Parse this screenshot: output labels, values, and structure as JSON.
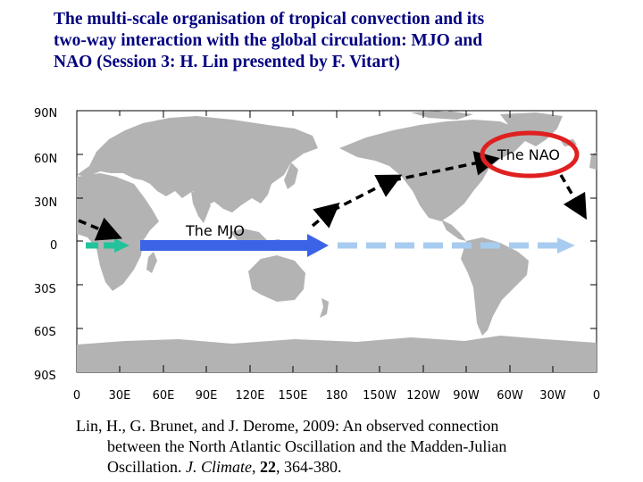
{
  "title": {
    "line1": "The multi-scale organisation of tropical convection and its",
    "line2": "two-way interaction with the global circulation: MJO and",
    "line3": "NAO (Session 3: H. Lin presented by F. Vitart)"
  },
  "map": {
    "lat_labels": [
      "90N",
      "60N",
      "30N",
      "0",
      "30S",
      "60S",
      "90S"
    ],
    "lon_labels": [
      "0",
      "30E",
      "60E",
      "90E",
      "120E",
      "150E",
      "180",
      "150W",
      "120W",
      "90W",
      "60W",
      "30W",
      "0"
    ],
    "labels": {
      "mjo": "The MJO",
      "nao": "The NAO"
    },
    "colors": {
      "ocean": "#ffffff",
      "land": "#b3b3b3",
      "mjo_arrow": "#3b63e6",
      "dashed_blue": "#a8ccf0",
      "teal_arrow": "#22c39a",
      "nao_circle": "#e02020",
      "teleconnection": "#000000"
    }
  },
  "reference": {
    "line1_a": "Lin, H.,  G. Brunet, and J. Derome, 2009: An observed connection",
    "line2": "between the North Atlantic Oscillation and the Madden-Julian",
    "line3_a": "Oscillation. ",
    "journal": "J. Climate",
    "sep1": ", ",
    "volume": "22",
    "pages": ", 364-380."
  }
}
